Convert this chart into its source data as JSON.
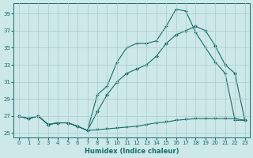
{
  "xlabel": "Humidex (Indice chaleur)",
  "bg_color": "#cce8e8",
  "line_color": "#1a6b6b",
  "grid_color": "#aacccc",
  "xlim": [
    -0.5,
    23.5
  ],
  "ylim": [
    24.5,
    40.2
  ],
  "yticks": [
    25,
    27,
    29,
    31,
    33,
    35,
    37,
    39
  ],
  "xticks": [
    0,
    1,
    2,
    3,
    4,
    5,
    6,
    7,
    8,
    9,
    10,
    11,
    12,
    13,
    14,
    15,
    16,
    17,
    18,
    19,
    20,
    21,
    22,
    23
  ],
  "line1_x": [
    0,
    1,
    2,
    3,
    4,
    5,
    6,
    7,
    8,
    9,
    10,
    11,
    12,
    13,
    14,
    15,
    16,
    17,
    18,
    19,
    20,
    21,
    22,
    23
  ],
  "line1_y": [
    27.0,
    26.7,
    27.0,
    26.0,
    26.2,
    26.2,
    25.8,
    25.3,
    29.5,
    30.5,
    33.3,
    35.0,
    35.5,
    35.5,
    35.8,
    37.5,
    39.5,
    39.3,
    36.8,
    35.0,
    33.3,
    32.0,
    26.5,
    26.5
  ],
  "line2_x": [
    0,
    1,
    2,
    3,
    4,
    5,
    6,
    7,
    8,
    9,
    10,
    11,
    12,
    13,
    14,
    15,
    16,
    17,
    18,
    19,
    20,
    21,
    22,
    23
  ],
  "line2_y": [
    27.0,
    26.7,
    27.0,
    26.0,
    26.2,
    26.2,
    25.8,
    25.3,
    27.5,
    29.5,
    31.0,
    32.0,
    32.5,
    33.0,
    34.0,
    35.5,
    36.5,
    37.0,
    37.5,
    37.0,
    35.2,
    33.0,
    32.0,
    26.5
  ],
  "line3_x": [
    0,
    1,
    2,
    3,
    4,
    5,
    6,
    7,
    8,
    9,
    10,
    11,
    12,
    13,
    14,
    15,
    16,
    17,
    18,
    19,
    20,
    21,
    22,
    23
  ],
  "line3_y": [
    27.0,
    26.7,
    27.0,
    26.0,
    26.2,
    26.2,
    25.8,
    25.3,
    25.4,
    25.5,
    25.6,
    25.7,
    25.8,
    26.0,
    26.2,
    26.3,
    26.5,
    26.6,
    26.7,
    26.7,
    26.7,
    26.7,
    26.7,
    26.5
  ]
}
